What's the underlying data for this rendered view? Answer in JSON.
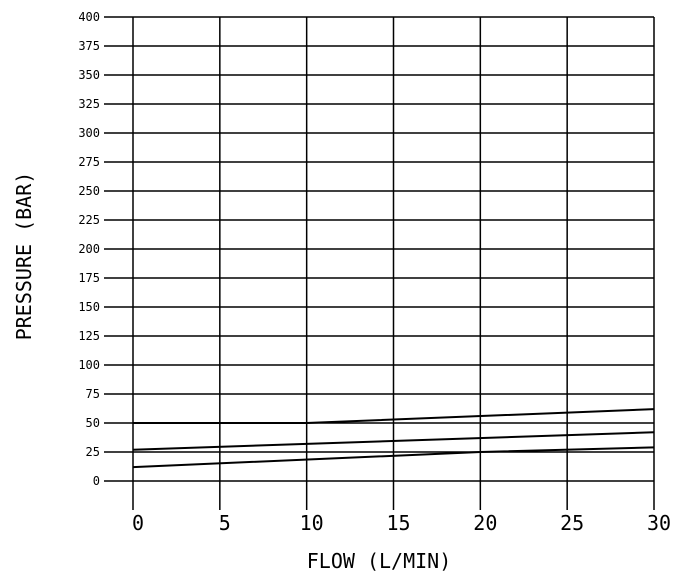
{
  "chart_data": {
    "type": "line",
    "title": "",
    "xlabel": "FLOW (L/MIN)",
    "ylabel": "PRESSURE (BAR)",
    "xlim": [
      0,
      30
    ],
    "ylim": [
      0,
      400
    ],
    "grid": true,
    "x_ticks": [
      "0",
      "5",
      "10",
      "15",
      "20",
      "25",
      "30"
    ],
    "y_ticks": [
      "0",
      "25",
      "50",
      "75",
      "100",
      "125",
      "150",
      "175",
      "200",
      "225",
      "250",
      "275",
      "300",
      "325",
      "350",
      "375",
      "400"
    ],
    "series": [
      {
        "x": [
          0,
          10,
          30
        ],
        "values": [
          50,
          50,
          62
        ]
      },
      {
        "x": [
          0,
          30
        ],
        "values": [
          27,
          42
        ]
      },
      {
        "x": [
          0,
          20,
          30
        ],
        "values": [
          12,
          25,
          29
        ]
      }
    ]
  }
}
